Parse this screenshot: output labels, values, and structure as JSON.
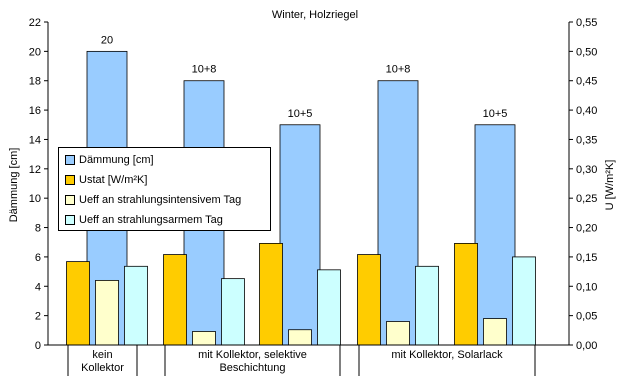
{
  "chart_data": {
    "type": "bar",
    "title": "Winter, Holzriegel",
    "ylabel_left": "Dämmung [cm]",
    "ylabel_right": "U [W/m²K]",
    "ylim_left": [
      0,
      22
    ],
    "ylim_right": [
      0,
      0.55
    ],
    "yticks_left": [
      "0",
      "2",
      "4",
      "6",
      "8",
      "10",
      "12",
      "14",
      "16",
      "18",
      "20",
      "22"
    ],
    "yticks_right": [
      "0,00",
      "0,05",
      "0,10",
      "0,15",
      "0,20",
      "0,25",
      "0,30",
      "0,35",
      "0,40",
      "0,45",
      "0,50",
      "0,55"
    ],
    "category_groups": [
      {
        "label": "kein Kollektor",
        "lines": [
          "kein",
          "Kollektor"
        ],
        "bars": 1
      },
      {
        "label": "mit Kollektor, selektive Beschichtung",
        "lines": [
          "mit Kollektor, selektive",
          "Beschichtung"
        ],
        "bars": 2
      },
      {
        "label": "mit Kollektor, Solarlack",
        "lines": [
          "mit Kollektor, Solarlack"
        ],
        "bars": 2
      }
    ],
    "dammung": {
      "name": "Dämmung [cm]",
      "color": "#99ccff",
      "axis": "left",
      "values": [
        20,
        18,
        15,
        18,
        15
      ],
      "labels": [
        "20",
        "10+8",
        "10+5",
        "10+8",
        "10+5"
      ]
    },
    "series": [
      {
        "name": "Ustat [W/m²K]",
        "color": "#ffcc00",
        "axis": "right",
        "values": [
          0.142,
          0.154,
          0.173,
          0.154,
          0.173
        ]
      },
      {
        "name": "Ueff an strahlungsintensivem Tag",
        "color": "#ffffcc",
        "axis": "right",
        "values": [
          0.11,
          0.023,
          0.026,
          0.04,
          0.045
        ]
      },
      {
        "name": "Ueff an strahlungsarmem Tag",
        "color": "#ccffff",
        "axis": "right",
        "values": [
          0.134,
          0.113,
          0.128,
          0.134,
          0.15
        ]
      }
    ],
    "grid": false,
    "legend_position": "upper-left inside plot"
  }
}
